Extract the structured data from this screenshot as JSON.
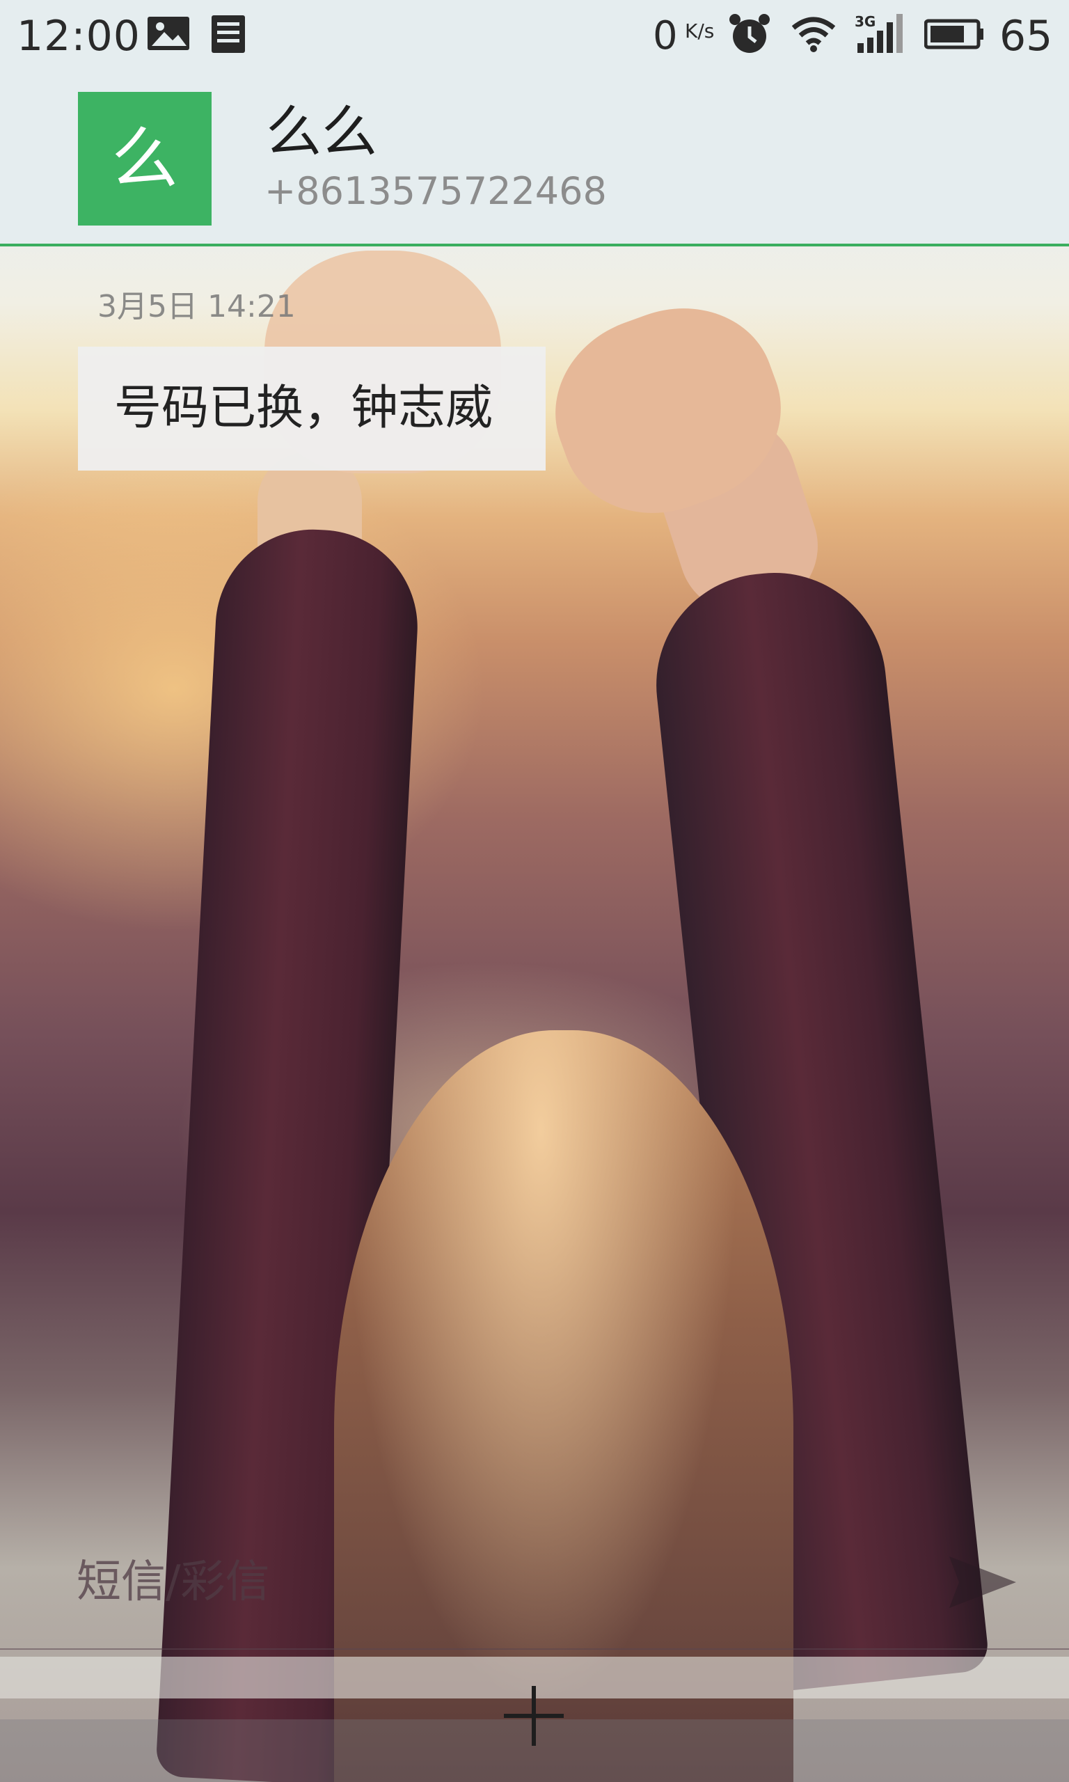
{
  "status_bar": {
    "time": "12:00",
    "net_speed": "0",
    "net_speed_unit": "K/s",
    "network_type": "3G",
    "battery_level": "65",
    "icons": [
      "image-icon",
      "document-icon",
      "alarm-icon",
      "wifi-icon",
      "signal-icon",
      "battery-icon"
    ]
  },
  "header": {
    "avatar_text": "么",
    "contact_name": "么么",
    "contact_number": "+8613575722468",
    "accent_color": "#3db363"
  },
  "messages": [
    {
      "timestamp": "3月5日 14:21",
      "text": "号码已换，钟志威"
    }
  ],
  "compose": {
    "placeholder": "短信/彩信",
    "value": "",
    "send_icon": "send-icon",
    "add_icon": "plus-icon"
  }
}
